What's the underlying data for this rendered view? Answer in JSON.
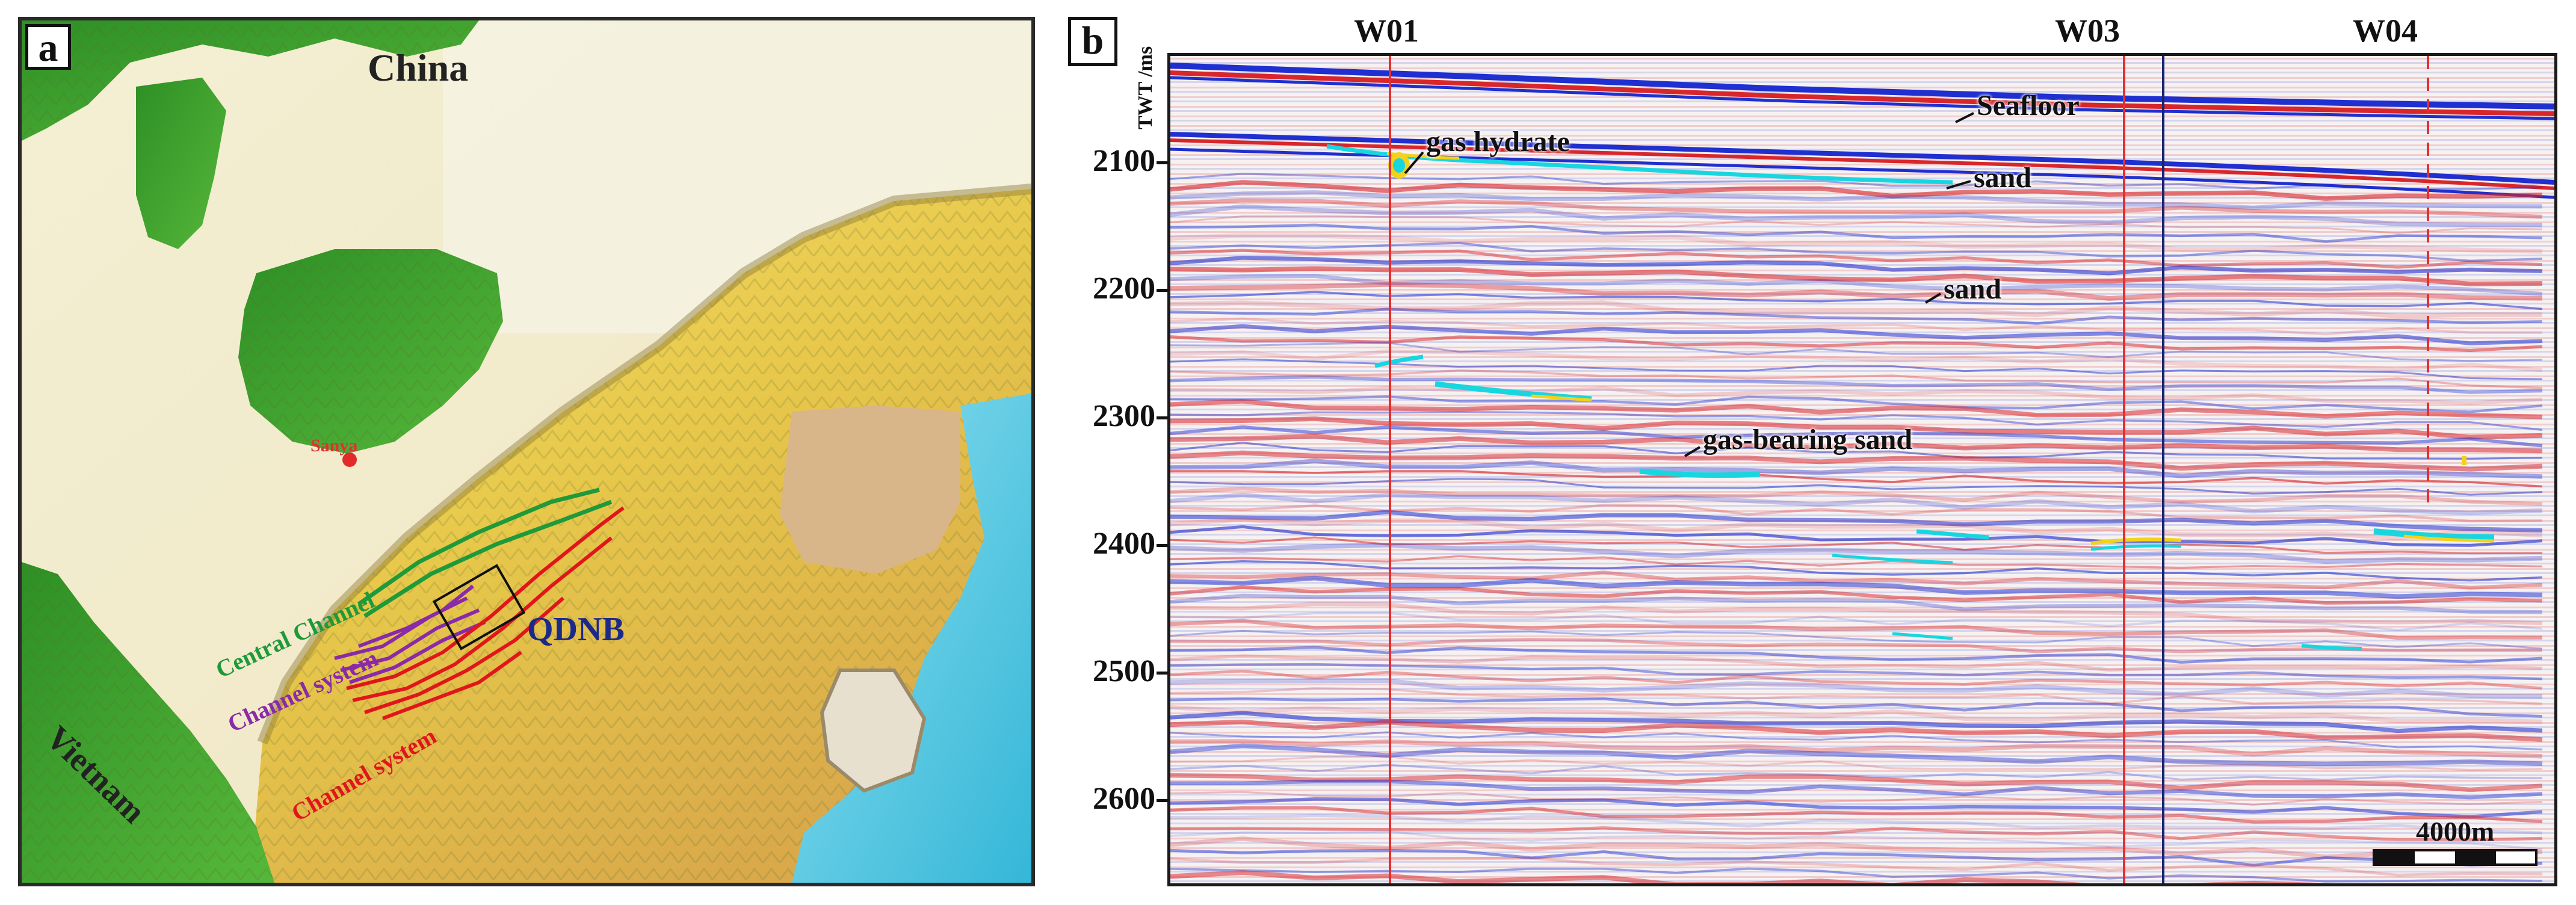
{
  "panel_a": {
    "letter": "a",
    "labels": {
      "china": "China",
      "vietnam": "Vietnam",
      "sanya": "Sanya",
      "qdnb": "QDNB",
      "central_channel": "Central Channel",
      "channel_system_purple": "Channel system",
      "channel_system_red": "Channel system"
    },
    "colors": {
      "land_green": "#3aa02a",
      "shelf_cream": "#f2ecc8",
      "slope_yellow": "#e7c84a",
      "basin_orange": "#d9a94a",
      "deep_cyan": "#4fc7e0",
      "central_channel": "#1f9a3a",
      "channel_purple": "#8a2aa8",
      "channel_red": "#e0161b",
      "qdnb_text": "#1b2a8a"
    }
  },
  "panel_b": {
    "letter": "b",
    "axis_title": "TWT /ms",
    "ticks": [
      "2100",
      "2200",
      "2300",
      "2400",
      "2500",
      "2600"
    ],
    "wells": [
      "W01",
      "W03",
      "W04"
    ],
    "annotations": {
      "seafloor": "Seafloor",
      "gas_hydrate": "gas hydrate",
      "sand_upper": "sand",
      "sand_lower": "sand",
      "gas_bearing_sand": "gas-bearing sand"
    },
    "scale_bar": "4000m",
    "colors": {
      "positive": "#d8262b",
      "negative": "#1f2fd0",
      "hydrate_cyan": "#18d6e0",
      "hydrate_yellow": "#f4d21a",
      "well_red": "#e23030",
      "well_navy": "#1a2470"
    }
  }
}
